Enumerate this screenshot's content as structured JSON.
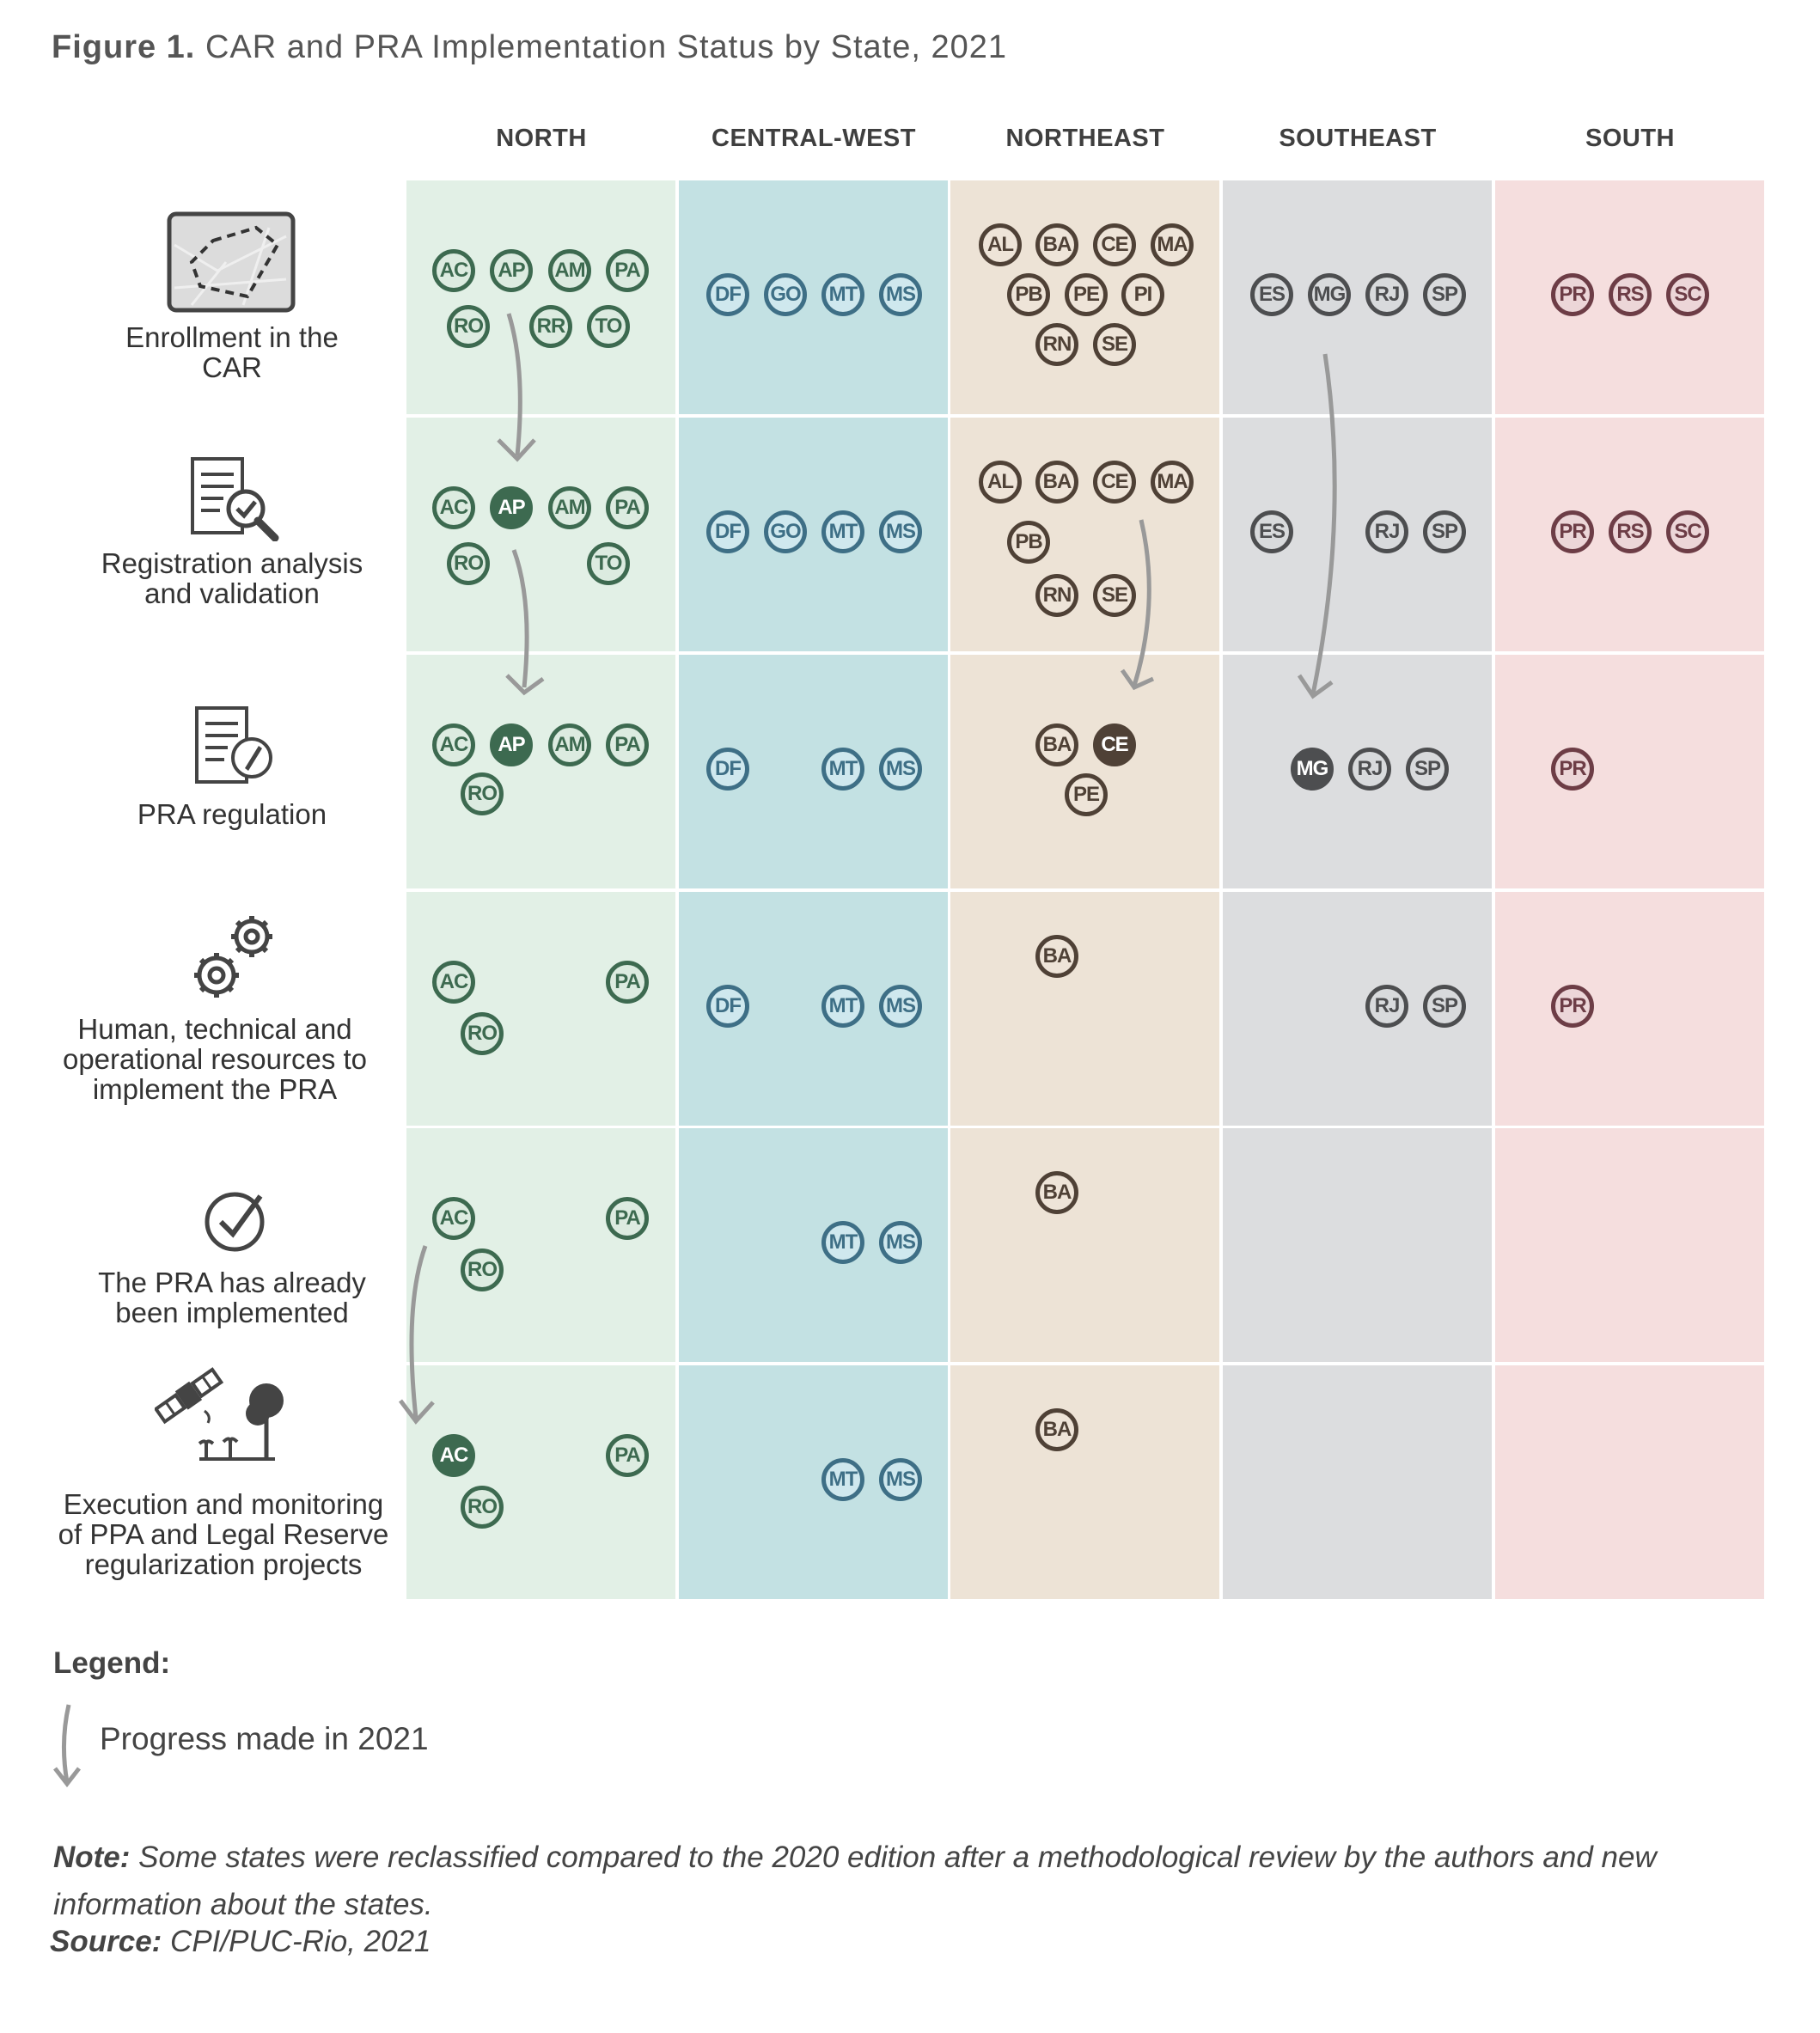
{
  "title": {
    "label": "Figure 1.",
    "text": "CAR and PRA Implementation Status by State, 2021"
  },
  "regions": [
    {
      "name": "NORTH",
      "fill": "#e2f0e6",
      "border": "#3d6a50",
      "text": "#3d6a50",
      "badge_fill": "#dcebe0",
      "active_fill": "#3d6a50"
    },
    {
      "name": "CENTRAL-WEST",
      "fill": "#c3e1e3",
      "border": "#3e6f86",
      "text": "#3e6f86",
      "badge_fill": "#cfe8ee",
      "active_fill": "#3e6f86"
    },
    {
      "name": "NORTHEAST",
      "fill": "#ede3d6",
      "border": "#4f4136",
      "text": "#4f4136",
      "badge_fill": "#eee4d8",
      "active_fill": "#4f4136"
    },
    {
      "name": "SOUTHEAST",
      "fill": "#dcdddf",
      "border": "#4d4e50",
      "text": "#4d4e50",
      "badge_fill": "#d8dadc",
      "active_fill": "#4d4e50"
    },
    {
      "name": "SOUTH",
      "fill": "#f5dede",
      "border": "#6d3d46",
      "text": "#6d3d46",
      "badge_fill": "#ecd6d8",
      "active_fill": "#6d3d46"
    }
  ],
  "stages": [
    {
      "label": "Enrollment in the CAR",
      "icon": "map-outline-icon"
    },
    {
      "label": "Registration analysis and validation",
      "icon": "document-check-icon"
    },
    {
      "label": "PRA regulation",
      "icon": "document-pencil-icon"
    },
    {
      "label": "Human, technical and operational resources to implement the PRA",
      "icon": "gears-icon"
    },
    {
      "label": "The PRA has already been implemented",
      "icon": "check-circle-icon"
    },
    {
      "label": "Execution and monitoring of PPA and Legal Reserve regularization projects",
      "icon": "satellite-tree-icon"
    }
  ],
  "states": [
    [
      [
        "AC",
        "AP",
        "AM",
        "PA",
        "RO",
        "RR",
        "TO"
      ],
      [
        "DF",
        "GO",
        "MT",
        "MS"
      ],
      [
        "AL",
        "BA",
        "CE",
        "MA",
        "PB",
        "PE",
        "PI",
        "RN",
        "SE"
      ],
      [
        "ES",
        "MG",
        "RJ",
        "SP"
      ],
      [
        "PR",
        "RS",
        "SC"
      ]
    ],
    [
      [
        "AC",
        "AP",
        "AM",
        "PA",
        "RO",
        "TO"
      ],
      [
        "DF",
        "GO",
        "MT",
        "MS"
      ],
      [
        "AL",
        "BA",
        "CE",
        "MA",
        "PB",
        "RN",
        "SE"
      ],
      [
        "ES",
        "RJ",
        "SP"
      ],
      [
        "PR",
        "RS",
        "SC"
      ]
    ],
    [
      [
        "AC",
        "AP",
        "AM",
        "PA",
        "RO"
      ],
      [
        "DF",
        "MT",
        "MS"
      ],
      [
        "BA",
        "CE",
        "PE"
      ],
      [
        "MG",
        "RJ",
        "SP"
      ],
      [
        "PR"
      ]
    ],
    [
      [
        "AC",
        "PA",
        "RO"
      ],
      [
        "DF",
        "MT",
        "MS"
      ],
      [
        "BA"
      ],
      [
        "RJ",
        "SP"
      ],
      [
        "PR"
      ]
    ],
    [
      [
        "AC",
        "PA",
        "RO"
      ],
      [
        "MT",
        "MS"
      ],
      [
        "BA"
      ],
      [],
      []
    ],
    [
      [
        "AC",
        "PA",
        "RO"
      ],
      [
        "MT",
        "MS"
      ],
      [
        "BA"
      ],
      [],
      []
    ]
  ],
  "progress_2021": [
    {
      "stage": 2,
      "region": "NORTH",
      "state": "AP"
    },
    {
      "stage": 3,
      "region": "NORTH",
      "state": "AP"
    },
    {
      "stage": 3,
      "region": "NORTHEAST",
      "state": "CE"
    },
    {
      "stage": 3,
      "region": "SOUTHEAST",
      "state": "MG"
    },
    {
      "stage": 6,
      "region": "NORTH",
      "state": "AC"
    }
  ],
  "legend": {
    "title": "Legend:",
    "arrow_label": "Progress made in 2021",
    "arrow_color": "#999999"
  },
  "note": {
    "label": "Note:",
    "text": "Some states were reclassified compared to the 2020 edition after a methodological review by the authors and new information about the states."
  },
  "source": {
    "label": "Source:",
    "text": "CPI/PUC-Rio, 2021"
  }
}
